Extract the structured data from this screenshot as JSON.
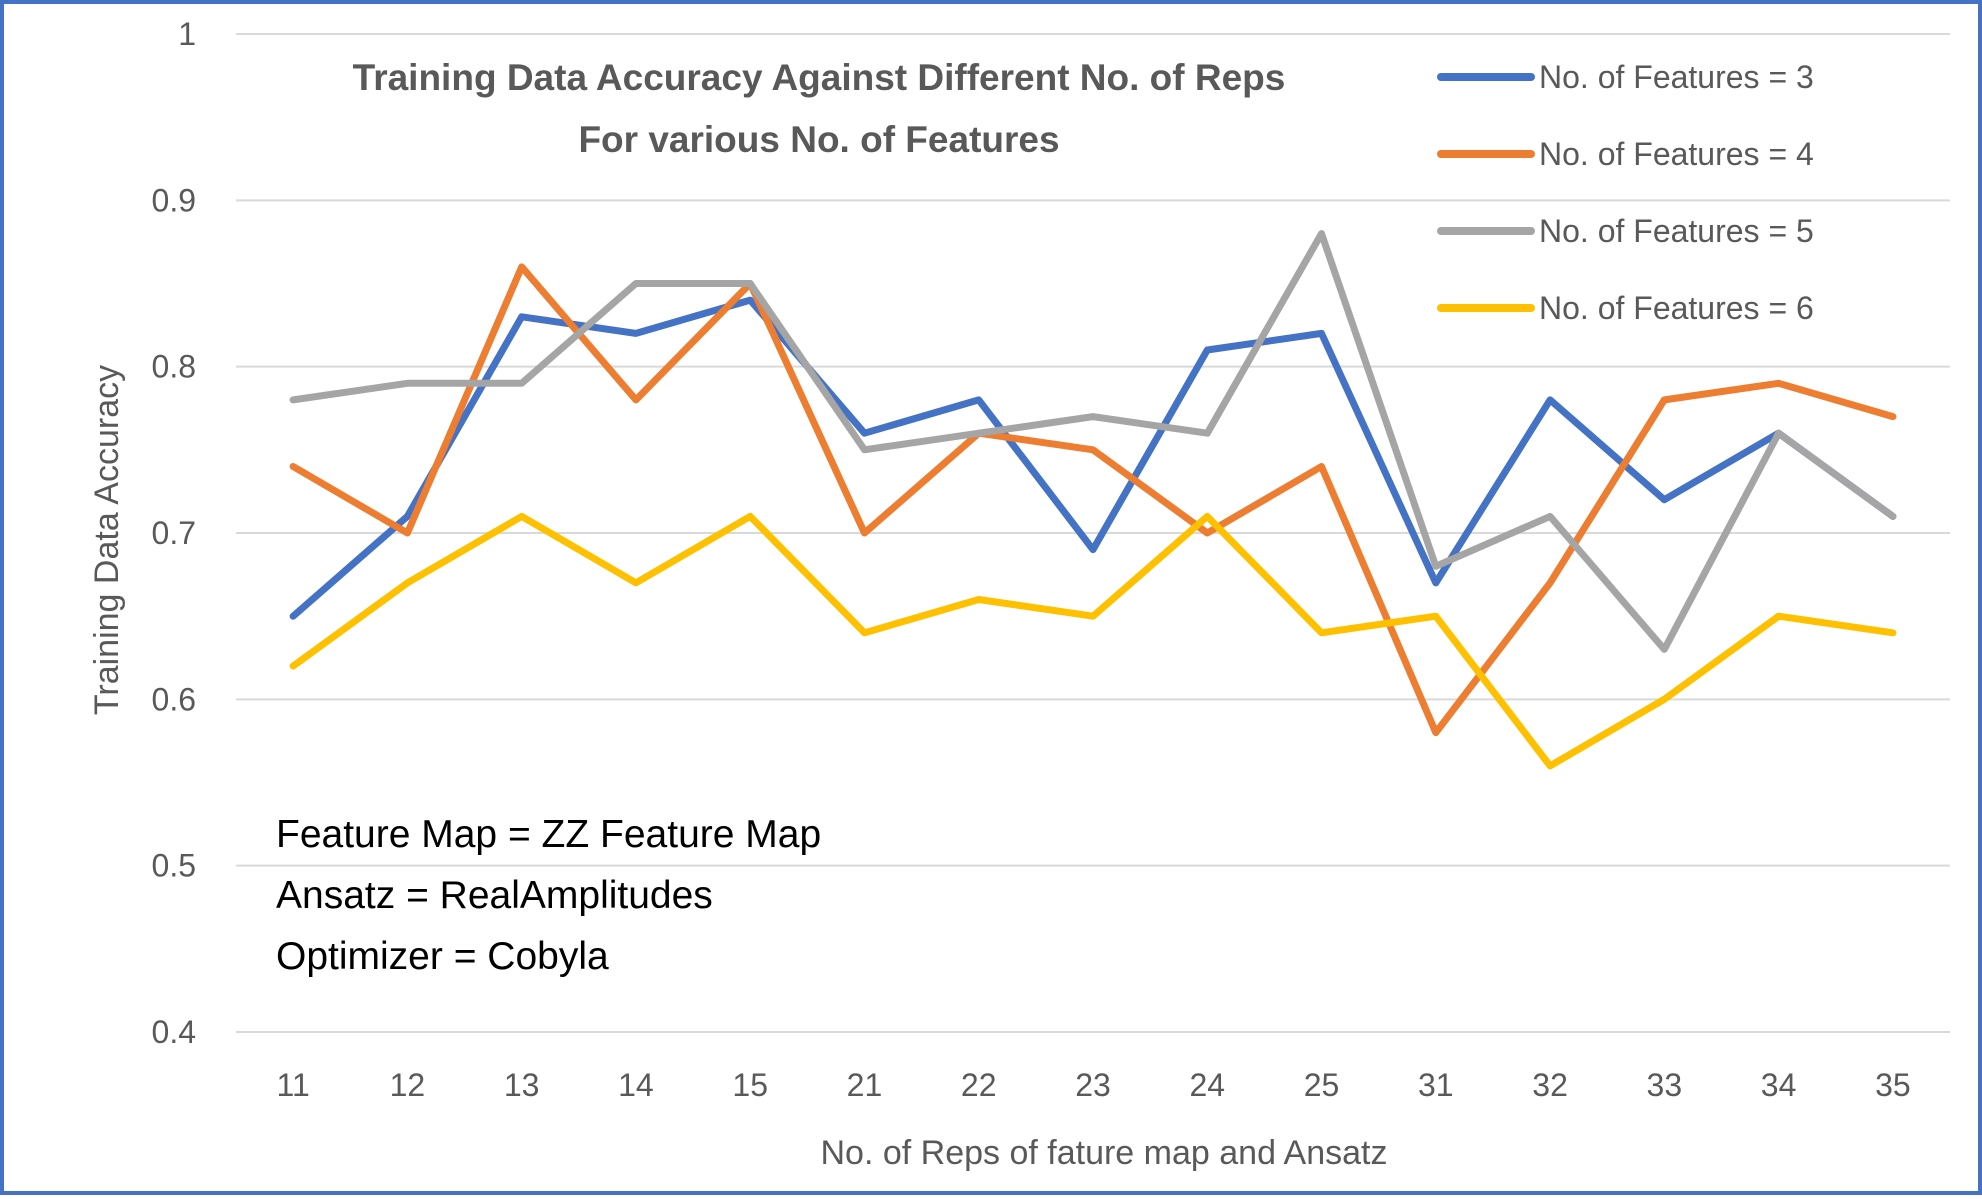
{
  "chart_data": {
    "type": "line",
    "title_lines": [
      "Training Data Accuracy Against Different No. of Reps",
      "For various No. of Features"
    ],
    "xlabel": "No. of Reps of fature map and Ansatz",
    "ylabel": "Training Data Accuracy",
    "categories": [
      "11",
      "12",
      "13",
      "14",
      "15",
      "21",
      "22",
      "23",
      "24",
      "25",
      "31",
      "32",
      "33",
      "34",
      "35"
    ],
    "ylim": [
      0.4,
      1
    ],
    "yticks": [
      "0.4",
      "0.5",
      "0.6",
      "0.7",
      "0.8",
      "0.9",
      "1"
    ],
    "grid": true,
    "legend_position": "top-right",
    "series": [
      {
        "name": "No. of Features = 3",
        "color": "#4472C4",
        "values": [
          0.65,
          0.71,
          0.83,
          0.82,
          0.84,
          0.76,
          0.78,
          0.69,
          0.81,
          0.82,
          0.67,
          0.78,
          0.72,
          0.76,
          0.71
        ]
      },
      {
        "name": "No. of Features = 4",
        "color": "#ED7D31",
        "values": [
          0.74,
          0.7,
          0.86,
          0.78,
          0.85,
          0.7,
          0.76,
          0.75,
          0.7,
          0.74,
          0.58,
          0.67,
          0.78,
          0.79,
          0.77
        ]
      },
      {
        "name": "No. of Features = 5",
        "color": "#A5A5A5",
        "values": [
          0.78,
          0.79,
          0.79,
          0.85,
          0.85,
          0.75,
          0.76,
          0.77,
          0.76,
          0.88,
          0.68,
          0.71,
          0.63,
          0.76,
          0.71
        ]
      },
      {
        "name": "No. of Features = 6",
        "color": "#FFC000",
        "values": [
          0.62,
          0.67,
          0.71,
          0.67,
          0.71,
          0.64,
          0.66,
          0.65,
          0.71,
          0.64,
          0.65,
          0.56,
          0.6,
          0.65,
          0.64
        ]
      }
    ],
    "annotations": [
      "Feature Map = ZZ Feature Map",
      "Ansatz = RealAmplitudes",
      "Optimizer = Cobyla"
    ]
  }
}
